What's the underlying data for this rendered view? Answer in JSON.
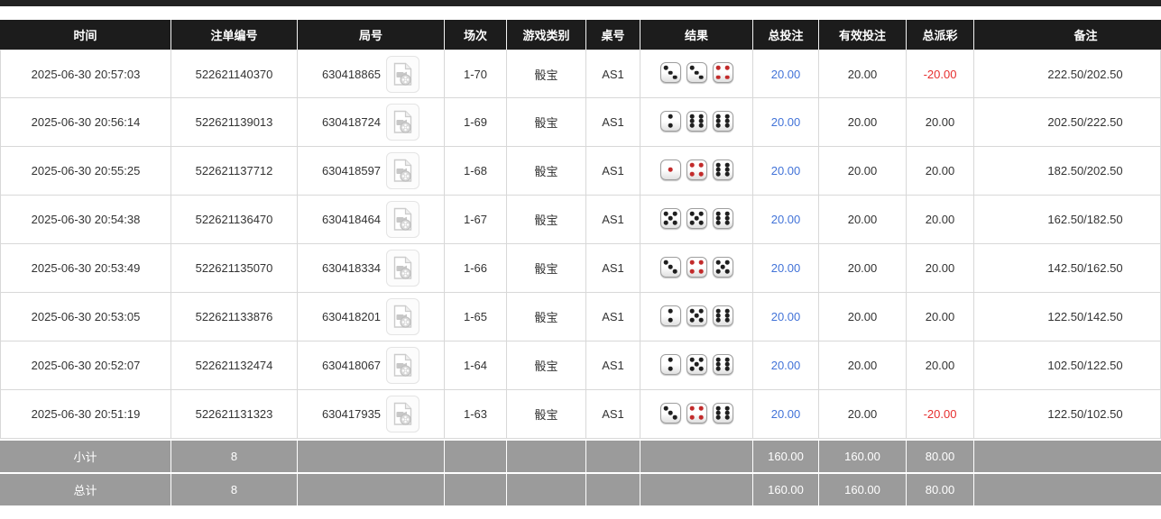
{
  "colors": {
    "header_bg": "#1c1c1c",
    "header_text": "#ffffff",
    "footer_bg": "#9b9b9b",
    "footer_text": "#ffffff",
    "row_border": "#d8d8d8",
    "text": "#333333",
    "bet_blue": "#4273d8",
    "negative_red": "#e62e2e",
    "pip_black": "#1f1f1f",
    "pip_red": "#c22b2b"
  },
  "icons": {
    "video_replay": "video-file-icon",
    "result": "die-face-icon"
  },
  "table": {
    "columns": [
      {
        "key": "time",
        "label": "时间"
      },
      {
        "key": "bet_id",
        "label": "注单编号"
      },
      {
        "key": "round_id",
        "label": "局号"
      },
      {
        "key": "session",
        "label": "场次"
      },
      {
        "key": "game_type",
        "label": "游戏类别"
      },
      {
        "key": "table_no",
        "label": "桌号"
      },
      {
        "key": "result",
        "label": "结果"
      },
      {
        "key": "total_bet",
        "label": "总投注"
      },
      {
        "key": "valid_bet",
        "label": "有效投注"
      },
      {
        "key": "total_payout",
        "label": "总派彩"
      },
      {
        "key": "remark",
        "label": "备注"
      }
    ],
    "rows": [
      {
        "time": "2025-06-30 20:57:03",
        "bet_id": "522621140370",
        "round_id": "630418865",
        "session": "1-70",
        "game_type": "骰宝",
        "table_no": "AS1",
        "dice": [
          3,
          3,
          4
        ],
        "total_bet": "20.00",
        "valid_bet": "20.00",
        "total_payout": "-20.00",
        "remark": "222.50/202.50"
      },
      {
        "time": "2025-06-30 20:56:14",
        "bet_id": "522621139013",
        "round_id": "630418724",
        "session": "1-69",
        "game_type": "骰宝",
        "table_no": "AS1",
        "dice": [
          2,
          6,
          6
        ],
        "total_bet": "20.00",
        "valid_bet": "20.00",
        "total_payout": "20.00",
        "remark": "202.50/222.50"
      },
      {
        "time": "2025-06-30 20:55:25",
        "bet_id": "522621137712",
        "round_id": "630418597",
        "session": "1-68",
        "game_type": "骰宝",
        "table_no": "AS1",
        "dice": [
          1,
          4,
          6
        ],
        "total_bet": "20.00",
        "valid_bet": "20.00",
        "total_payout": "20.00",
        "remark": "182.50/202.50"
      },
      {
        "time": "2025-06-30 20:54:38",
        "bet_id": "522621136470",
        "round_id": "630418464",
        "session": "1-67",
        "game_type": "骰宝",
        "table_no": "AS1",
        "dice": [
          5,
          5,
          6
        ],
        "total_bet": "20.00",
        "valid_bet": "20.00",
        "total_payout": "20.00",
        "remark": "162.50/182.50"
      },
      {
        "time": "2025-06-30 20:53:49",
        "bet_id": "522621135070",
        "round_id": "630418334",
        "session": "1-66",
        "game_type": "骰宝",
        "table_no": "AS1",
        "dice": [
          3,
          4,
          5
        ],
        "total_bet": "20.00",
        "valid_bet": "20.00",
        "total_payout": "20.00",
        "remark": "142.50/162.50"
      },
      {
        "time": "2025-06-30 20:53:05",
        "bet_id": "522621133876",
        "round_id": "630418201",
        "session": "1-65",
        "game_type": "骰宝",
        "table_no": "AS1",
        "dice": [
          2,
          5,
          6
        ],
        "total_bet": "20.00",
        "valid_bet": "20.00",
        "total_payout": "20.00",
        "remark": "122.50/142.50"
      },
      {
        "time": "2025-06-30 20:52:07",
        "bet_id": "522621132474",
        "round_id": "630418067",
        "session": "1-64",
        "game_type": "骰宝",
        "table_no": "AS1",
        "dice": [
          2,
          5,
          6
        ],
        "total_bet": "20.00",
        "valid_bet": "20.00",
        "total_payout": "20.00",
        "remark": "102.50/122.50"
      },
      {
        "time": "2025-06-30 20:51:19",
        "bet_id": "522621131323",
        "round_id": "630417935",
        "session": "1-63",
        "game_type": "骰宝",
        "table_no": "AS1",
        "dice": [
          3,
          4,
          6
        ],
        "total_bet": "20.00",
        "valid_bet": "20.00",
        "total_payout": "-20.00",
        "remark": "122.50/102.50"
      }
    ],
    "footer": [
      {
        "label": "小计",
        "count": "8",
        "total_bet": "160.00",
        "valid_bet": "160.00",
        "total_payout": "80.00"
      },
      {
        "label": "总计",
        "count": "8",
        "total_bet": "160.00",
        "valid_bet": "160.00",
        "total_payout": "80.00"
      }
    ]
  }
}
